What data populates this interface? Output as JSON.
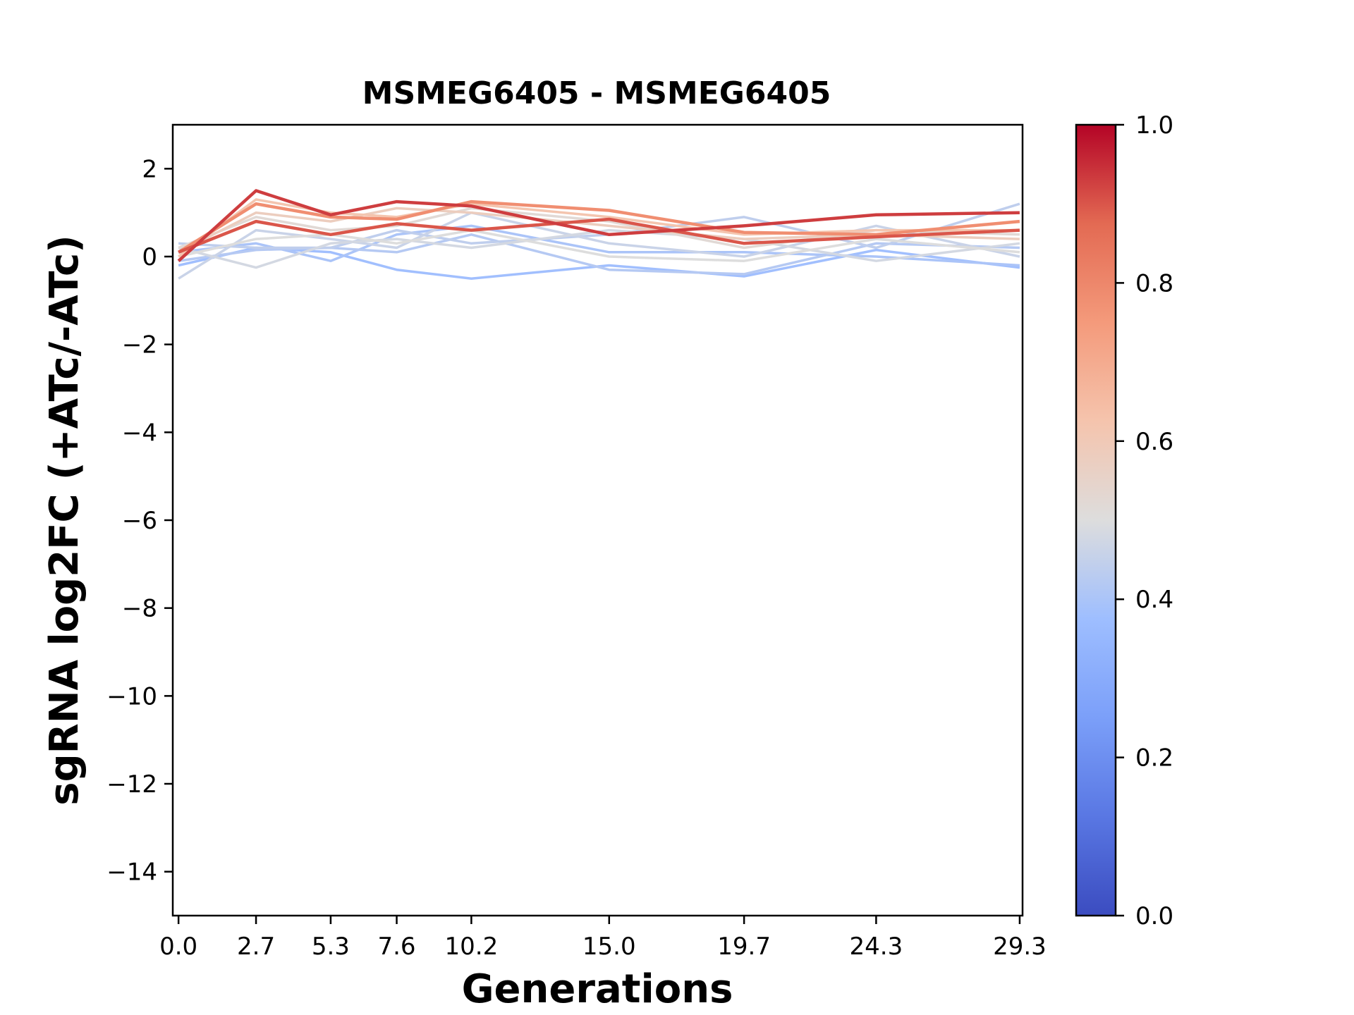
{
  "chart_data": {
    "type": "line",
    "title": "MSMEG6405 - MSMEG6405",
    "xlabel": "Generations",
    "ylabel": "sgRNA log2FC (+ATc/-ATc)",
    "x": [
      0.0,
      2.7,
      5.3,
      7.6,
      10.2,
      15.0,
      19.7,
      24.3,
      29.3
    ],
    "x_tick_labels": [
      "0.0",
      "2.7",
      "5.3",
      "7.6",
      "10.2",
      "15.0",
      "19.7",
      "24.3",
      "29.3"
    ],
    "xlim": [
      -0.2,
      29.4
    ],
    "ylim": [
      -15,
      3
    ],
    "y_ticks": [
      2,
      0,
      -2,
      -4,
      -6,
      -8,
      -10,
      -12,
      -14
    ],
    "y_tick_labels": [
      "2",
      "0",
      "−2",
      "−4",
      "−6",
      "−8",
      "−10",
      "−12",
      "−14"
    ],
    "grid": false,
    "colormap": "coolwarm",
    "colorbar": {
      "range": [
        0,
        1
      ],
      "ticks": [
        "0.0",
        "0.2",
        "0.4",
        "0.6",
        "0.8",
        "1.0"
      ],
      "stops": [
        [
          0.0,
          "#3b4cc0"
        ],
        [
          0.125,
          "#5977e3"
        ],
        [
          0.25,
          "#7b9ff9"
        ],
        [
          0.375,
          "#9ebeff"
        ],
        [
          0.5,
          "#dddddd"
        ],
        [
          0.625,
          "#f5c4ad"
        ],
        [
          0.75,
          "#f49a7b"
        ],
        [
          0.875,
          "#e36a53"
        ],
        [
          1.0,
          "#b40426"
        ]
      ]
    },
    "series": [
      {
        "color_value": 0.38,
        "values": [
          -0.2,
          0.2,
          0.1,
          -0.3,
          -0.5,
          -0.2,
          -0.45,
          0.15,
          -0.25
        ]
      },
      {
        "color_value": 0.4,
        "values": [
          0.1,
          0.3,
          -0.1,
          0.5,
          0.7,
          0.1,
          0.1,
          0.0,
          -0.2
        ]
      },
      {
        "color_value": 0.42,
        "values": [
          -0.1,
          0.15,
          0.2,
          0.1,
          0.5,
          -0.3,
          -0.4,
          0.3,
          0.2
        ]
      },
      {
        "color_value": 0.44,
        "values": [
          0.3,
          0.2,
          0.2,
          0.6,
          0.3,
          0.5,
          0.9,
          0.2,
          1.2
        ]
      },
      {
        "color_value": 0.46,
        "values": [
          -0.5,
          0.6,
          0.4,
          0.2,
          1.0,
          0.3,
          0.0,
          0.7,
          0.0
        ]
      },
      {
        "color_value": 0.48,
        "values": [
          0.2,
          -0.25,
          0.3,
          0.4,
          0.2,
          0.6,
          0.4,
          -0.1,
          0.3
        ]
      },
      {
        "color_value": 0.5,
        "values": [
          0.0,
          0.4,
          0.5,
          0.3,
          0.6,
          0.0,
          -0.1,
          0.4,
          0.1
        ]
      },
      {
        "color_value": 0.52,
        "values": [
          0.2,
          0.9,
          0.6,
          0.7,
          1.1,
          0.8,
          0.2,
          0.6,
          0.5
        ]
      },
      {
        "color_value": 0.58,
        "values": [
          0.1,
          1.0,
          0.8,
          1.1,
          1.0,
          0.7,
          0.4,
          0.5,
          0.4
        ]
      },
      {
        "color_value": 0.62,
        "values": [
          0.0,
          1.3,
          1.0,
          0.9,
          1.2,
          0.9,
          0.5,
          0.6,
          0.6
        ]
      },
      {
        "color_value": 0.78,
        "values": [
          0.1,
          1.2,
          0.9,
          0.85,
          1.25,
          1.05,
          0.55,
          0.5,
          0.8
        ]
      },
      {
        "color_value": 0.9,
        "values": [
          0.1,
          0.8,
          0.5,
          0.75,
          0.6,
          0.85,
          0.3,
          0.45,
          0.6
        ]
      },
      {
        "color_value": 0.93,
        "values": [
          -0.1,
          1.5,
          0.95,
          1.25,
          1.15,
          0.5,
          0.7,
          0.95,
          1.0
        ]
      }
    ]
  }
}
